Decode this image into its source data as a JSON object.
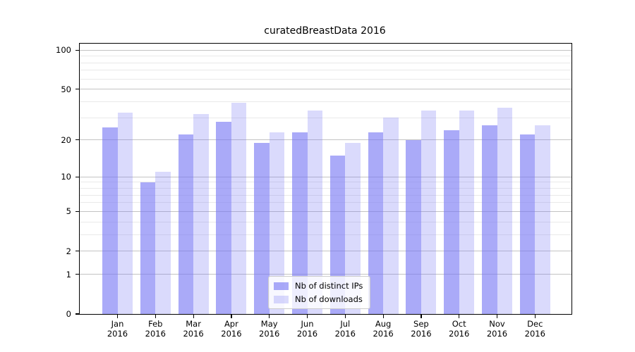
{
  "chart_data": {
    "type": "bar",
    "title": "curatedBreastData 2016",
    "categories": [
      "Jan",
      "Feb",
      "Mar",
      "Apr",
      "May",
      "Jun",
      "Jul",
      "Aug",
      "Sep",
      "Oct",
      "Nov",
      "Dec"
    ],
    "category_year": "2016",
    "series": [
      {
        "name": "Nb of distinct IPs",
        "color": "rgba(118,118,244,0.62)",
        "values": [
          25,
          9,
          22,
          28,
          19,
          23,
          15,
          23,
          20,
          24,
          26,
          22
        ]
      },
      {
        "name": "Nb of downloads",
        "color": "rgba(118,118,244,0.27)",
        "values": [
          33,
          11,
          32,
          39,
          23,
          34,
          19,
          30,
          34,
          34,
          36,
          26
        ]
      }
    ],
    "yscale": "log1p",
    "yticks": [
      0,
      1,
      2,
      5,
      10,
      20,
      50,
      100
    ],
    "minor_yticks": [
      3,
      4,
      6,
      7,
      8,
      9,
      30,
      40,
      60,
      70,
      80,
      90
    ],
    "ylim": [
      0,
      112
    ],
    "grid": true,
    "legend_position": "lower-center"
  },
  "colors": {
    "major_grid": "#c3c3c3",
    "minor_grid": "#e9e9e9",
    "axis": "#000000",
    "background": "#ffffff"
  }
}
